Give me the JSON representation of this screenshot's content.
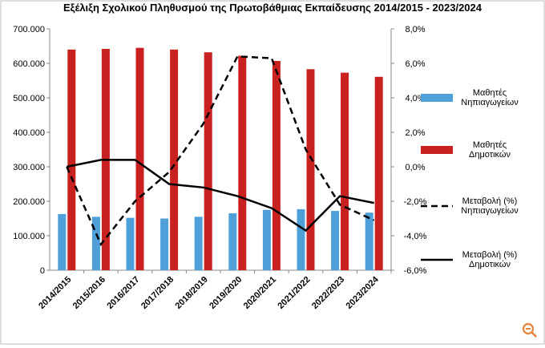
{
  "chart_data": {
    "type": "bar-line",
    "title": "Εξέλιξη Σχολικού Πληθυσμού της Πρωτοβάθμιας Εκπαίδευσης 2014/2015 - 2023/2024",
    "categories": [
      "2014/2015",
      "2015/2016",
      "2016/2017",
      "2017/2018",
      "2018/2019",
      "2019/2020",
      "2020/2021",
      "2021/2022",
      "2022/2023",
      "2023/2024"
    ],
    "series": [
      {
        "name": "Μαθητές Νηπιαγωγείων",
        "type": "bar",
        "color": "#4f9fd8",
        "values": [
          163000,
          155000,
          152000,
          150000,
          155000,
          165000,
          175000,
          177000,
          172000,
          167000
        ]
      },
      {
        "name": "Μαθητές Δημοτικών",
        "type": "bar",
        "color": "#c8211f",
        "values": [
          640000,
          642000,
          645000,
          640000,
          632000,
          622000,
          607000,
          583000,
          573000,
          561000
        ]
      },
      {
        "name": "Μεταβολή (%) Νηπιαγωγείων",
        "type": "line",
        "dash": true,
        "color": "#000000",
        "axis": "y2",
        "values": [
          0.0,
          -4.5,
          -2.0,
          -0.3,
          2.5,
          6.4,
          6.3,
          1.0,
          -2.2,
          -3.1
        ]
      },
      {
        "name": "Μεταβολή (%) Δημοτικών",
        "type": "line",
        "dash": false,
        "color": "#000000",
        "axis": "y2",
        "values": [
          0.0,
          0.4,
          0.4,
          -1.0,
          -1.2,
          -1.7,
          -2.4,
          -3.7,
          -1.7,
          -2.1
        ]
      }
    ],
    "ylim": [
      0,
      700000
    ],
    "yticks": [
      {
        "value": 0,
        "label": "0"
      },
      {
        "value": 100000,
        "label": "100.000"
      },
      {
        "value": 200000,
        "label": "200.000"
      },
      {
        "value": 300000,
        "label": "300.000"
      },
      {
        "value": 400000,
        "label": "400.000"
      },
      {
        "value": 500000,
        "label": "500.000"
      },
      {
        "value": 600000,
        "label": "600.000"
      },
      {
        "value": 700000,
        "label": "700.000"
      }
    ],
    "y2lim": [
      -6,
      8
    ],
    "y2ticks": [
      {
        "value": -6,
        "label": "-6,0%"
      },
      {
        "value": -4,
        "label": "-4,0%"
      },
      {
        "value": -2,
        "label": "-2,0%"
      },
      {
        "value": 0,
        "label": "0,0%"
      },
      {
        "value": 2,
        "label": "2,0%"
      },
      {
        "value": 4,
        "label": "4,0%"
      },
      {
        "value": 6,
        "label": "6,0%"
      },
      {
        "value": 8,
        "label": "8,0%"
      }
    ],
    "grid": false
  }
}
